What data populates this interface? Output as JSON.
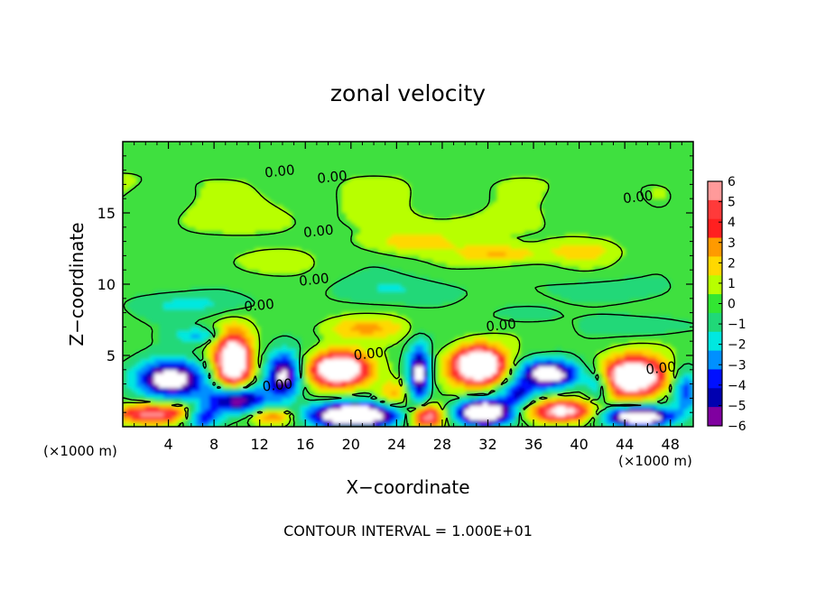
{
  "chart_data": {
    "type": "heatmap",
    "title": "zonal velocity",
    "xlabel": "X−coordinate",
    "ylabel": "Z−coordinate",
    "x_unit_left": "(×1000 m)",
    "x_unit_right": "(×1000 m)",
    "footer": "CONTOUR INTERVAL = 1.000E+01",
    "xlim": [
      0,
      50
    ],
    "ylim": [
      0,
      20
    ],
    "x_ticks": [
      4,
      8,
      12,
      16,
      20,
      24,
      28,
      32,
      36,
      40,
      44,
      48
    ],
    "x_tick_labels": [
      "4",
      "8",
      "12",
      "16",
      "20",
      "24",
      "28",
      "32",
      "36",
      "40",
      "44",
      "48"
    ],
    "y_ticks": [
      5,
      10,
      15
    ],
    "y_tick_labels": [
      "5",
      "10",
      "15"
    ],
    "colorbar": {
      "range": [
        -6,
        6
      ],
      "labels": [
        "6",
        "5",
        "4",
        "3",
        "2",
        "1",
        "0",
        "−1",
        "−2",
        "−3",
        "−4",
        "−5",
        "−6"
      ],
      "colors": [
        "#ff9a9a",
        "#ff3a3a",
        "#ff2020",
        "#ff9a00",
        "#ffd800",
        "#b8ff00",
        "#32e632",
        "#20d878",
        "#00e8e0",
        "#0090ff",
        "#0010ff",
        "#0000b0",
        "#8000a0"
      ]
    },
    "contour_labels": [
      {
        "text": "0.00",
        "x": 13.8,
        "y": 17.6
      },
      {
        "text": "0.00",
        "x": 18.4,
        "y": 17.2
      },
      {
        "text": "0.00",
        "x": 45.2,
        "y": 15.8
      },
      {
        "text": "0.00",
        "x": 17.2,
        "y": 13.4
      },
      {
        "text": "0.00",
        "x": 16.8,
        "y": 10.0
      },
      {
        "text": "0.00",
        "x": 12.0,
        "y": 8.2
      },
      {
        "text": "0.00",
        "x": 33.2,
        "y": 6.8
      },
      {
        "text": "0.00",
        "x": 21.6,
        "y": 4.8
      },
      {
        "text": "0.00",
        "x": 13.6,
        "y": 2.6
      },
      {
        "text": "0.00",
        "x": 47.2,
        "y": 3.8
      }
    ],
    "features": [
      {
        "x": 1.0,
        "y": 17.0,
        "rx": 8,
        "ry": 1.5,
        "v": 0.6
      },
      {
        "x": 22.0,
        "y": 16.5,
        "rx": 10,
        "ry": 1.8,
        "v": 0.5
      },
      {
        "x": 40.0,
        "y": 17.0,
        "rx": 8,
        "ry": 1.5,
        "v": 0.4
      },
      {
        "x": 10.0,
        "y": 14.5,
        "rx": 7,
        "ry": 1.2,
        "v": 1.0
      },
      {
        "x": 30.0,
        "y": 14.0,
        "rx": 8,
        "ry": 1.2,
        "v": 0.8
      },
      {
        "x": 25.0,
        "y": 12.8,
        "rx": 4,
        "ry": 0.8,
        "v": 2.0
      },
      {
        "x": 33.0,
        "y": 12.0,
        "rx": 3.5,
        "ry": 0.7,
        "v": 2.8
      },
      {
        "x": 40.0,
        "y": 12.2,
        "rx": 3,
        "ry": 0.8,
        "v": 2.0
      },
      {
        "x": 12.0,
        "y": 11.5,
        "rx": 3,
        "ry": 0.8,
        "v": 1.5
      },
      {
        "x": 24.0,
        "y": 9.5,
        "rx": 6,
        "ry": 1.0,
        "v": -1.5
      },
      {
        "x": 42.0,
        "y": 9.5,
        "rx": 5,
        "ry": 0.9,
        "v": -1.2
      },
      {
        "x": 6.0,
        "y": 8.5,
        "rx": 5,
        "ry": 0.9,
        "v": -1.8
      },
      {
        "x": 6.5,
        "y": 6.3,
        "rx": 2,
        "ry": 0.6,
        "v": -2.8
      },
      {
        "x": 21.0,
        "y": 6.8,
        "rx": 4,
        "ry": 0.8,
        "v": 2.5
      },
      {
        "x": 46.0,
        "y": 7.0,
        "rx": 4,
        "ry": 0.8,
        "v": -1.5
      },
      {
        "x": 35.0,
        "y": 7.8,
        "rx": 3,
        "ry": 0.7,
        "v": -1.2
      },
      {
        "x": 4.0,
        "y": 3.2,
        "rx": 3,
        "ry": 1.3,
        "v": -8
      },
      {
        "x": 9.5,
        "y": 4.4,
        "rx": 1.6,
        "ry": 2.0,
        "v": 10
      },
      {
        "x": 14.0,
        "y": 3.5,
        "rx": 1.6,
        "ry": 1.6,
        "v": -7
      },
      {
        "x": 9.8,
        "y": 1.8,
        "rx": 2.5,
        "ry": 1.0,
        "v": -7
      },
      {
        "x": 18.8,
        "y": 3.9,
        "rx": 2.6,
        "ry": 1.2,
        "v": 10
      },
      {
        "x": 20.0,
        "y": 0.7,
        "rx": 3.8,
        "ry": 0.9,
        "v": -10
      },
      {
        "x": 25.8,
        "y": 3.6,
        "rx": 1.0,
        "ry": 2.0,
        "v": -7
      },
      {
        "x": 26.5,
        "y": 0.6,
        "rx": 1.5,
        "ry": 0.8,
        "v": 7
      },
      {
        "x": 31.0,
        "y": 4.2,
        "rx": 2.3,
        "ry": 1.3,
        "v": 11
      },
      {
        "x": 31.5,
        "y": 0.9,
        "rx": 2.5,
        "ry": 0.9,
        "v": -10
      },
      {
        "x": 37.2,
        "y": 3.6,
        "rx": 2.6,
        "ry": 1.0,
        "v": -8
      },
      {
        "x": 38.2,
        "y": 1.0,
        "rx": 3.0,
        "ry": 0.8,
        "v": 7
      },
      {
        "x": 44.6,
        "y": 3.4,
        "rx": 2.8,
        "ry": 1.4,
        "v": 10
      },
      {
        "x": 45.0,
        "y": 0.6,
        "rx": 3.0,
        "ry": 0.7,
        "v": -9
      },
      {
        "x": 2.5,
        "y": 0.8,
        "rx": 3.5,
        "ry": 0.7,
        "v": 6
      },
      {
        "x": 13.0,
        "y": 0.6,
        "rx": 2.0,
        "ry": 0.6,
        "v": 4
      },
      {
        "x": 23.5,
        "y": 2.2,
        "rx": 1.5,
        "ry": 1.0,
        "v": 3
      },
      {
        "x": 34.5,
        "y": 2.2,
        "rx": 1.5,
        "ry": 0.8,
        "v": -4
      },
      {
        "x": 41.5,
        "y": 2.8,
        "rx": 1.2,
        "ry": 1.2,
        "v": -4
      },
      {
        "x": 49.2,
        "y": 2.5,
        "rx": 1.2,
        "ry": 1.5,
        "v": -4
      },
      {
        "x": 6.8,
        "y": 0.5,
        "rx": 1.5,
        "ry": 0.8,
        "v": -5
      }
    ]
  }
}
